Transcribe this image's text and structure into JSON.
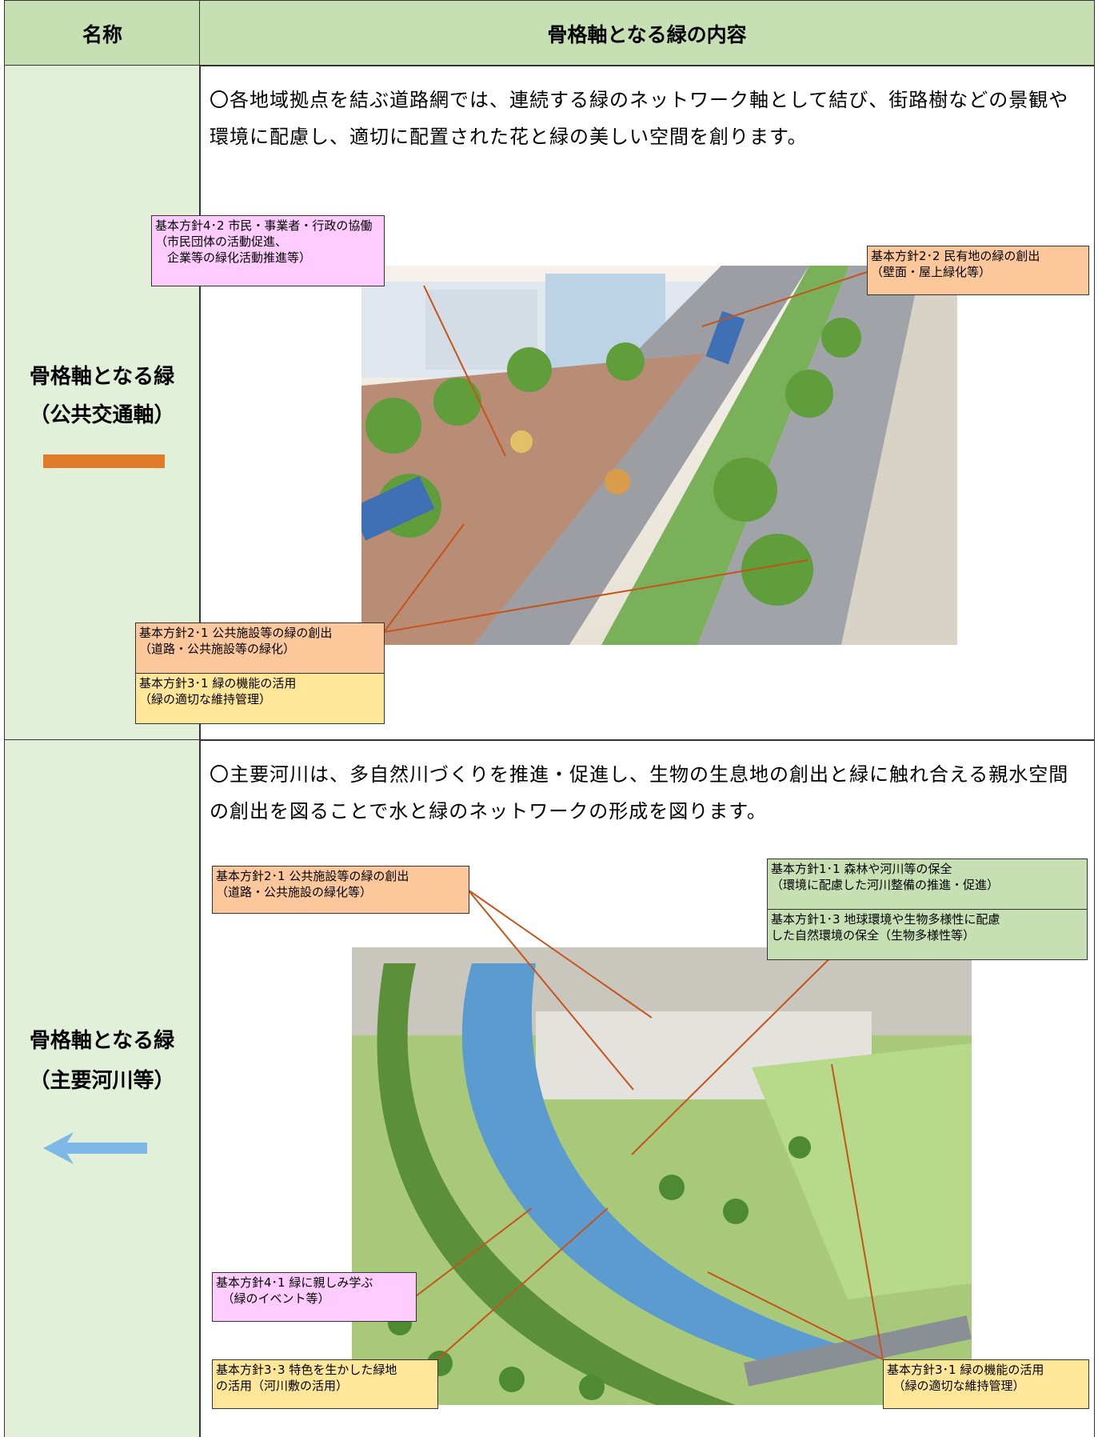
{
  "header": {
    "name": "名称",
    "content": "骨格軸となる緑の内容"
  },
  "rows": [
    {
      "name": [
        "骨格軸となる緑",
        "（公共交通軸）"
      ],
      "description": "〇各地域拠点を結ぶ道路網では、連続する緑のネットワーク軸として結び、街路樹などの景観や環境に配慮し、適切に配置された花と緑の美しい空間を創ります。",
      "labels": [
        {
          "lines": [
            "基本方針4･2 市民・事業者・行政の協働",
            "（市民団体の活動促進、",
            "　企業等の緑化活動推進等）"
          ]
        },
        {
          "lines": [
            "基本方針2･2 民有地の緑の創出",
            "（壁面・屋上緑化等）"
          ]
        },
        {
          "lines": [
            "基本方針2･1 公共施設等の緑の創出",
            "（道路・公共施設等の緑化）"
          ]
        },
        {
          "lines": [
            "基本方針3･1 緑の機能の活用",
            "（緑の適切な維持管理）"
          ]
        }
      ]
    },
    {
      "name": [
        "骨格軸となる緑",
        "（主要河川等）"
      ],
      "description": "〇主要河川は、多自然川づくりを推進・促進し、生物の生息地の創出と緑に触れ合える親水空間の創出を図ることで水と緑のネットワークの形成を図ります。",
      "labels": [
        {
          "lines": [
            "基本方針2･1 公共施設等の緑の創出",
            "（道路・公共施設の緑化等）"
          ]
        },
        {
          "lines": [
            "基本方針1･1 森林や河川等の保全",
            "（環境に配慮した河川整備の推進・促進）"
          ]
        },
        {
          "lines": [
            "基本方針1･3 地球環境や生物多様性に配慮",
            "した自然環境の保全（生物多様性等）"
          ]
        },
        {
          "lines": [
            "基本方針4･1 緑に親しみ学ぶ",
            "　（緑のイベント等）"
          ]
        },
        {
          "lines": [
            "基本方針3･3 特色を生かした緑地",
            "の活用（河川敷の活用）"
          ]
        },
        {
          "lines": [
            "基本方針3･1 緑の機能の活用",
            "　（緑の適切な維持管理）"
          ]
        }
      ]
    }
  ]
}
